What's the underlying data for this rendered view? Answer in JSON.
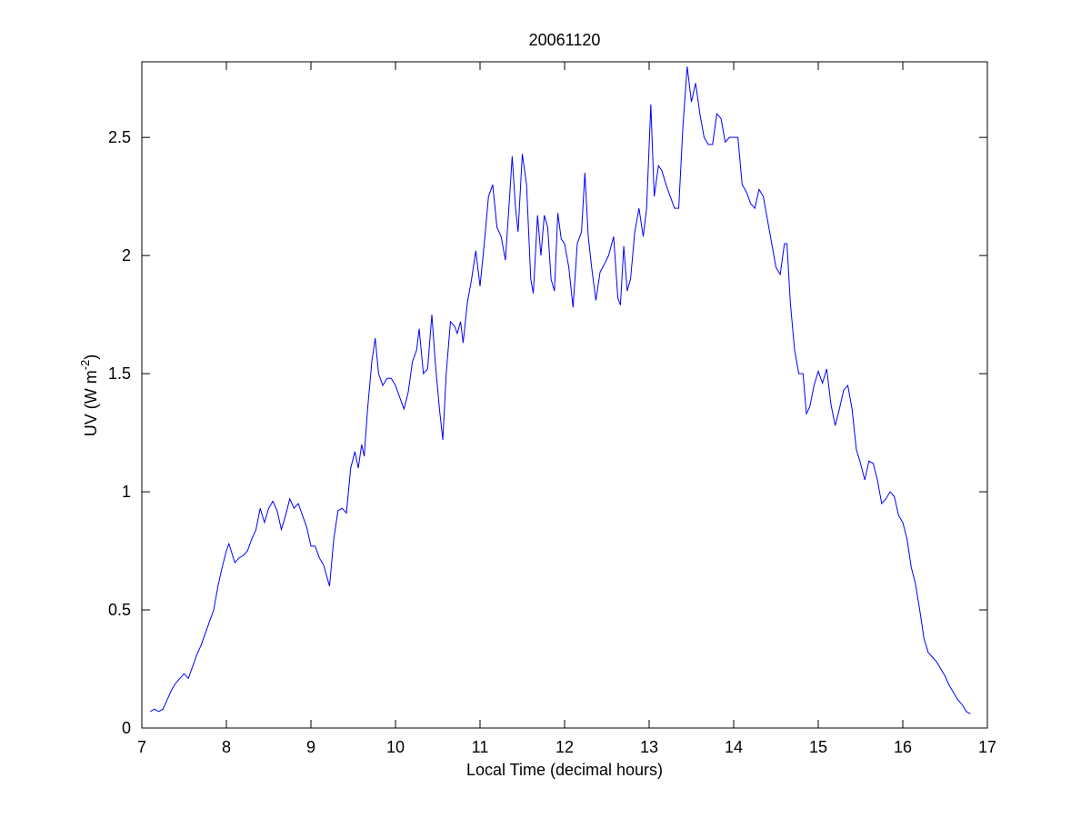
{
  "chart_data": {
    "type": "line",
    "title": "20061120",
    "xlabel": "Local Time (decimal hours)",
    "ylabel": {
      "text": "UV (W m",
      "superscript": "-2",
      "suffix": ")"
    },
    "x": [
      7.1,
      7.15,
      7.2,
      7.25,
      7.3,
      7.35,
      7.4,
      7.45,
      7.5,
      7.55,
      7.6,
      7.65,
      7.7,
      7.75,
      7.8,
      7.85,
      7.9,
      7.95,
      8.0,
      8.03,
      8.1,
      8.15,
      8.2,
      8.25,
      8.3,
      8.35,
      8.4,
      8.45,
      8.5,
      8.55,
      8.6,
      8.65,
      8.7,
      8.75,
      8.8,
      8.85,
      8.9,
      8.95,
      9.0,
      9.05,
      9.1,
      9.15,
      9.22,
      9.27,
      9.32,
      9.37,
      9.42,
      9.47,
      9.52,
      9.56,
      9.6,
      9.63,
      9.67,
      9.72,
      9.76,
      9.8,
      9.85,
      9.9,
      9.95,
      10.0,
      10.05,
      10.1,
      10.15,
      10.2,
      10.25,
      10.28,
      10.33,
      10.38,
      10.43,
      10.47,
      10.52,
      10.56,
      10.6,
      10.65,
      10.7,
      10.73,
      10.77,
      10.8,
      10.85,
      10.9,
      10.95,
      11.0,
      11.05,
      11.1,
      11.15,
      11.2,
      11.25,
      11.3,
      11.35,
      11.38,
      11.42,
      11.45,
      11.5,
      11.55,
      11.6,
      11.63,
      11.68,
      11.72,
      11.76,
      11.8,
      11.84,
      11.88,
      11.92,
      11.96,
      12.0,
      12.05,
      12.1,
      12.15,
      12.2,
      12.24,
      12.28,
      12.32,
      12.37,
      12.42,
      12.48,
      12.52,
      12.58,
      12.63,
      12.66,
      12.7,
      12.74,
      12.78,
      12.83,
      12.88,
      12.93,
      12.97,
      13.02,
      13.06,
      13.11,
      13.15,
      13.2,
      13.25,
      13.3,
      13.35,
      13.4,
      13.45,
      13.5,
      13.55,
      13.6,
      13.65,
      13.7,
      13.75,
      13.8,
      13.85,
      13.9,
      13.95,
      14.0,
      14.05,
      14.1,
      14.15,
      14.2,
      14.25,
      14.3,
      14.35,
      14.4,
      14.45,
      14.5,
      14.55,
      14.6,
      14.63,
      14.67,
      14.72,
      14.77,
      14.82,
      14.86,
      14.9,
      14.95,
      15.0,
      15.05,
      15.1,
      15.15,
      15.2,
      15.25,
      15.3,
      15.35,
      15.4,
      15.45,
      15.5,
      15.55,
      15.6,
      15.65,
      15.7,
      15.75,
      15.8,
      15.85,
      15.9,
      15.95,
      16.0,
      16.05,
      16.1,
      16.15,
      16.2,
      16.25,
      16.3,
      16.35,
      16.4,
      16.45,
      16.5,
      16.55,
      16.6,
      16.65,
      16.7,
      16.75,
      16.8
    ],
    "values": [
      0.07,
      0.08,
      0.07,
      0.08,
      0.12,
      0.16,
      0.19,
      0.21,
      0.23,
      0.21,
      0.26,
      0.31,
      0.35,
      0.4,
      0.45,
      0.5,
      0.6,
      0.68,
      0.75,
      0.78,
      0.7,
      0.72,
      0.73,
      0.75,
      0.8,
      0.84,
      0.93,
      0.87,
      0.93,
      0.96,
      0.92,
      0.84,
      0.9,
      0.97,
      0.93,
      0.95,
      0.9,
      0.85,
      0.77,
      0.77,
      0.72,
      0.69,
      0.6,
      0.8,
      0.92,
      0.93,
      0.91,
      1.1,
      1.17,
      1.1,
      1.2,
      1.15,
      1.35,
      1.55,
      1.65,
      1.5,
      1.45,
      1.48,
      1.48,
      1.45,
      1.4,
      1.35,
      1.42,
      1.55,
      1.6,
      1.69,
      1.5,
      1.52,
      1.75,
      1.55,
      1.35,
      1.22,
      1.5,
      1.72,
      1.7,
      1.67,
      1.72,
      1.63,
      1.8,
      1.9,
      2.02,
      1.87,
      2.05,
      2.25,
      2.3,
      2.12,
      2.08,
      1.98,
      2.25,
      2.42,
      2.2,
      2.1,
      2.43,
      2.3,
      1.9,
      1.84,
      2.17,
      2.0,
      2.17,
      2.12,
      1.9,
      1.85,
      2.18,
      2.07,
      2.05,
      1.95,
      1.78,
      2.05,
      2.1,
      2.35,
      2.08,
      1.95,
      1.81,
      1.93,
      1.97,
      2.0,
      2.08,
      1.82,
      1.79,
      2.04,
      1.85,
      1.9,
      2.1,
      2.2,
      2.08,
      2.2,
      2.64,
      2.25,
      2.38,
      2.36,
      2.3,
      2.25,
      2.2,
      2.2,
      2.55,
      2.8,
      2.65,
      2.73,
      2.6,
      2.5,
      2.47,
      2.47,
      2.6,
      2.58,
      2.48,
      2.5,
      2.5,
      2.5,
      2.3,
      2.27,
      2.22,
      2.2,
      2.28,
      2.25,
      2.15,
      2.05,
      1.95,
      1.92,
      2.05,
      2.05,
      1.8,
      1.6,
      1.5,
      1.5,
      1.33,
      1.36,
      1.45,
      1.51,
      1.46,
      1.52,
      1.37,
      1.28,
      1.35,
      1.43,
      1.45,
      1.35,
      1.18,
      1.12,
      1.05,
      1.13,
      1.12,
      1.05,
      0.95,
      0.97,
      1.0,
      0.98,
      0.9,
      0.87,
      0.8,
      0.68,
      0.61,
      0.5,
      0.38,
      0.32,
      0.3,
      0.28,
      0.25,
      0.22,
      0.18,
      0.15,
      0.12,
      0.1,
      0.07,
      0.06
    ],
    "color": "#0000ff",
    "xlim": [
      7,
      17
    ],
    "xticks": [
      7,
      8,
      9,
      10,
      11,
      12,
      13,
      14,
      15,
      16,
      17
    ],
    "ylim": [
      0,
      2.82
    ],
    "yticks": [
      0,
      0.5,
      1,
      1.5,
      2,
      2.5
    ],
    "grid": false
  }
}
